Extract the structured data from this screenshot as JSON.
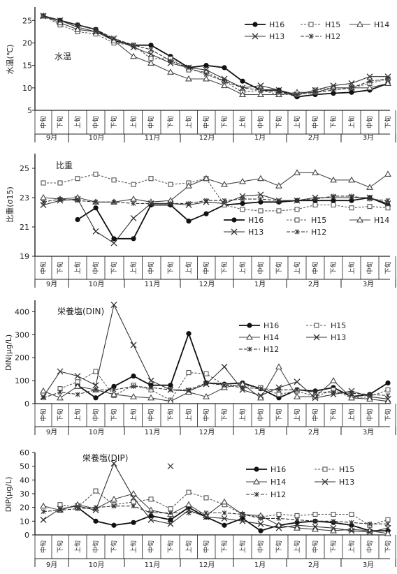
{
  "periods": [
    "中旬",
    "下旬",
    "上旬",
    "中旬",
    "下旬",
    "上旬",
    "中旬",
    "下旬",
    "上旬",
    "中旬",
    "下旬",
    "上旬",
    "中旬",
    "下旬",
    "上旬",
    "中旬",
    "下旬",
    "上旬",
    "中旬",
    "下旬"
  ],
  "months": [
    "9月",
    "10月",
    "11月",
    "12月",
    "1月",
    "2月",
    "3月"
  ],
  "series_styles": {
    "H16": {
      "color": "#111111",
      "marker": "dot",
      "dash": ""
    },
    "H15": {
      "color": "#555555",
      "marker": "square",
      "dash": "3,2"
    },
    "H14": {
      "color": "#444444",
      "marker": "triangle",
      "dash": ""
    },
    "H13": {
      "color": "#333333",
      "marker": "x",
      "dash": ""
    },
    "H12": {
      "color": "#333333",
      "marker": "star",
      "dash": "5,2"
    }
  },
  "chart_data": [
    {
      "type": "line",
      "title": "水温",
      "ylabel": "水温(℃)",
      "ylim": [
        5,
        28
      ],
      "yticks": [
        5,
        10,
        15,
        20,
        25
      ],
      "x": [
        "9月中旬",
        "9月下旬",
        "10月上旬",
        "10月中旬",
        "10月下旬",
        "11月上旬",
        "11月中旬",
        "11月下旬",
        "12月上旬",
        "12月中旬",
        "12月下旬",
        "1月上旬",
        "1月中旬",
        "1月下旬",
        "2月上旬",
        "2月中旬",
        "2月下旬",
        "3月上旬",
        "3月中旬",
        "3月下旬"
      ],
      "legend": [
        "H16",
        "H15",
        "H14",
        "H13",
        "H12"
      ],
      "series": [
        {
          "name": "H16",
          "values": [
            26,
            25,
            24,
            23,
            20.5,
            19.5,
            19.5,
            17,
            14.5,
            15,
            14.5,
            11.5,
            9.5,
            9.5,
            8,
            8.5,
            8.8,
            9,
            9.5,
            11
          ]
        },
        {
          "name": "H15",
          "values": [
            26,
            24,
            22.5,
            22,
            20,
            19.5,
            16.5,
            16.5,
            14,
            13.5,
            11.5,
            9,
            9.5,
            8.5,
            8.5,
            9.5,
            10,
            10,
            11,
            12
          ]
        },
        {
          "name": "H14",
          "values": [
            26,
            24.5,
            23,
            22.5,
            20.5,
            17,
            15.5,
            13.5,
            12,
            12,
            10.5,
            8.5,
            8.5,
            8.5,
            9,
            9,
            10,
            10,
            10,
            11
          ]
        },
        {
          "name": "H13",
          "values": [
            26,
            25,
            23.5,
            22.5,
            21,
            19,
            17.5,
            15.5,
            14.5,
            14,
            12,
            10,
            10.5,
            9.5,
            8.5,
            9.5,
            10.5,
            11,
            12.5,
            12.5
          ]
        },
        {
          "name": "H12",
          "values": [
            26,
            25,
            24,
            23,
            21,
            19.5,
            18.5,
            16,
            14.5,
            13,
            11.5,
            10,
            9.5,
            9,
            8.5,
            9,
            9.5,
            10,
            11.5,
            12
          ]
        }
      ]
    },
    {
      "type": "line",
      "title": "比重",
      "ylabel": "比重(σ15)",
      "ylim": [
        19,
        26
      ],
      "yticks": [
        19,
        21,
        23,
        25
      ],
      "legend": [
        "H16",
        "H15",
        "H14",
        "H13",
        "H12"
      ],
      "series": [
        {
          "name": "H16",
          "values": [
            null,
            null,
            21.5,
            22.3,
            20.2,
            20.2,
            22.5,
            22.5,
            21.4,
            21.9,
            22.5,
            22.6,
            22.7,
            22.7,
            22.8,
            22.8,
            22.8,
            22.8,
            23.0,
            22.5
          ]
        },
        {
          "name": "H15",
          "values": [
            24.0,
            24.0,
            24.3,
            24.6,
            24.2,
            23.9,
            24.3,
            23.9,
            24.0,
            24.3,
            22.5,
            22.2,
            22.1,
            22.1,
            22.2,
            22.5,
            22.5,
            22.3,
            22.4,
            22.3
          ]
        },
        {
          "name": "H14",
          "values": [
            23.0,
            22.9,
            23.0,
            22.7,
            22.7,
            22.9,
            22.7,
            22.8,
            23.8,
            24.3,
            23.9,
            24.1,
            24.3,
            23.8,
            24.7,
            24.7,
            24.2,
            24.2,
            23.7,
            24.6
          ]
        },
        {
          "name": "H13",
          "values": [
            22.5,
            22.8,
            22.9,
            20.7,
            19.9,
            21.6,
            22.6,
            22.6,
            22.5,
            22.7,
            22.6,
            23.1,
            23.2,
            22.8,
            22.8,
            23.0,
            23.0,
            23.0,
            23.0,
            22.6
          ]
        },
        {
          "name": "H12",
          "values": [
            22.7,
            22.9,
            22.8,
            22.7,
            22.7,
            22.6,
            22.6,
            22.6,
            22.6,
            22.8,
            22.8,
            22.9,
            22.9,
            22.8,
            22.8,
            22.9,
            23.1,
            23.1,
            22.9,
            22.8
          ]
        }
      ]
    },
    {
      "type": "line",
      "title": "栄養塩(DIN)",
      "ylabel": "DIN(μg/L)",
      "ylim": [
        0,
        450
      ],
      "yticks": [
        0,
        100,
        200,
        300,
        400
      ],
      "legend": [
        "H16",
        "H15",
        "H14",
        "H13",
        "H12"
      ],
      "series": [
        {
          "name": "H16",
          "values": [
            null,
            null,
            80,
            25,
            75,
            120,
            80,
            80,
            305,
            90,
            85,
            90,
            65,
            25,
            60,
            55,
            70,
            30,
            40,
            90
          ]
        },
        {
          "name": "H15",
          "values": [
            null,
            65,
            95,
            140,
            35,
            80,
            60,
            15,
            135,
            130,
            80,
            80,
            70,
            40,
            55,
            30,
            60,
            25,
            30,
            60
          ]
        },
        {
          "name": "H14",
          "values": [
            55,
            25,
            75,
            60,
            40,
            30,
            25,
            10,
            50,
            30,
            70,
            85,
            25,
            160,
            30,
            30,
            100,
            25,
            20,
            10
          ]
        },
        {
          "name": "H13",
          "values": [
            30,
            140,
            120,
            80,
            430,
            255,
            100,
            60,
            55,
            85,
            160,
            60,
            35,
            70,
            95,
            25,
            40,
            55,
            30,
            20
          ]
        },
        {
          "name": "H12",
          "values": [
            25,
            50,
            40,
            60,
            60,
            75,
            70,
            60,
            60,
            90,
            80,
            70,
            65,
            60,
            60,
            50,
            50,
            45,
            40,
            35
          ]
        }
      ]
    },
    {
      "type": "line",
      "title": "栄養塩(DIP)",
      "ylabel": "DIP(μg/L)",
      "ylim": [
        0,
        60
      ],
      "yticks": [
        0,
        10,
        20,
        30,
        40,
        50,
        60
      ],
      "legend": [
        "H16",
        "H15",
        "H14",
        "H13",
        "H12"
      ],
      "series": [
        {
          "name": "H16",
          "values": [
            null,
            null,
            20,
            10,
            7,
            9,
            14,
            11,
            20,
            13,
            7,
            12,
            3,
            7,
            9,
            10,
            9,
            7,
            3,
            3
          ]
        },
        {
          "name": "H15",
          "values": [
            null,
            22,
            20,
            32,
            22,
            24,
            26,
            19,
            31,
            27,
            22,
            15,
            13,
            15,
            14,
            15,
            15,
            15,
            7,
            11
          ]
        },
        {
          "name": "H14",
          "values": [
            21,
            18,
            22,
            19,
            26,
            30,
            18,
            15,
            22,
            14,
            24,
            15,
            14,
            7,
            5,
            4,
            3,
            4,
            3,
            1
          ]
        },
        {
          "name": "H13",
          "values": [
            11,
            19,
            21,
            18,
            52,
            27,
            11,
            8,
            18,
            13,
            12,
            10,
            8,
            5,
            7,
            6,
            5,
            3,
            2,
            5
          ]
        },
        {
          "name": "H12",
          "values": [
            17,
            18,
            19,
            20,
            21,
            21,
            16,
            16,
            16,
            16,
            16,
            15,
            12,
            12,
            11,
            10,
            10,
            9,
            8,
            8
          ]
        }
      ],
      "annotations": [
        {
          "x": "11月下旬",
          "y": 50,
          "marker": "x"
        }
      ]
    }
  ]
}
